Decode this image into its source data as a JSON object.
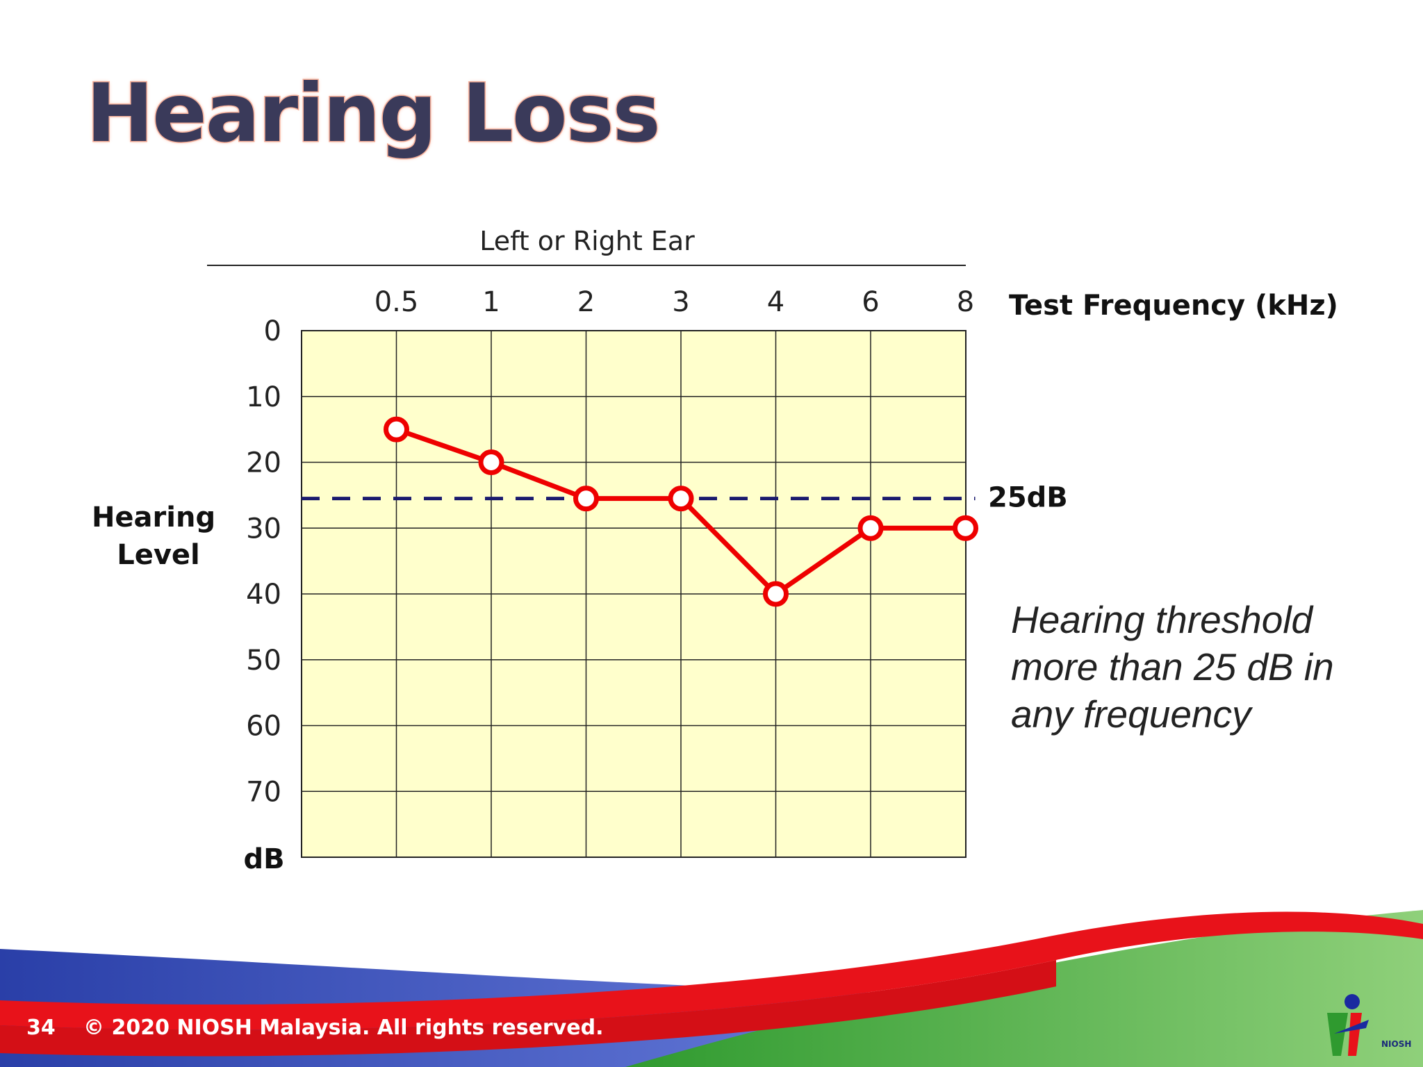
{
  "slide": {
    "title": "Hearing Loss",
    "note": "Hearing threshold more than 25 dB in any frequency",
    "page_number": "34",
    "copyright": "© 2020 NIOSH Malaysia. All rights reserved.",
    "logo_text": "NIOSH"
  },
  "colors": {
    "plot_background": "#ffffcc",
    "series_line": "#ee0000",
    "threshold_line": "#1a1a6e",
    "title_text": "#3a3a5a",
    "title_outline": "#f4a58e"
  },
  "chart_data": {
    "type": "line",
    "title": "Left or Right Ear",
    "xlabel": "Test Frequency (kHz)",
    "ylabel": "Hearing Level",
    "y_unit": "dB",
    "categories": [
      "0.5",
      "1",
      "2",
      "3",
      "4",
      "6",
      "8"
    ],
    "y_ticks": [
      0,
      10,
      20,
      30,
      40,
      50,
      60,
      70
    ],
    "ylim": [
      0,
      80
    ],
    "y_inverted": true,
    "grid": true,
    "series": [
      {
        "values": [
          15,
          20,
          25.5,
          25.5,
          40,
          30,
          30
        ],
        "marker": "open-circle"
      }
    ],
    "reference_line": {
      "value": 25.5,
      "label": "25dB",
      "style": "dashed"
    }
  }
}
